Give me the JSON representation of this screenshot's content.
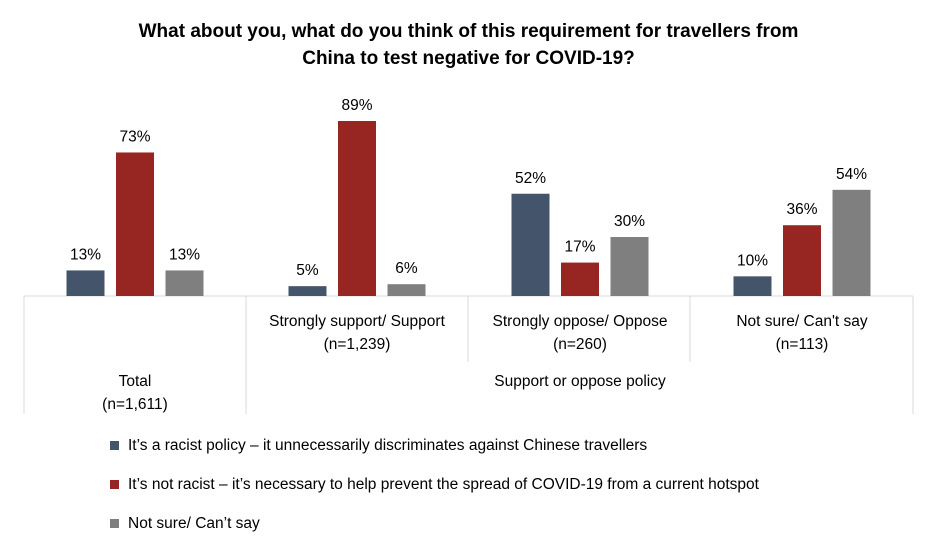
{
  "chart_data": {
    "type": "bar",
    "title_line1": "What about you, what do you think of this requirement for travellers from",
    "title_line2": "China to test negative for COVID-19?",
    "groups": [
      {
        "label_line1": "Total",
        "label_line2": "(n=1,611)"
      },
      {
        "label_line1": "Strongly support/ Support",
        "label_line2": "(n=1,239)"
      },
      {
        "label_line1": "Strongly oppose/ Oppose",
        "label_line2": "(n=260)"
      },
      {
        "label_line1": "Not sure/ Can't say",
        "label_line2": "(n=113)"
      }
    ],
    "supergroup_label": "Support or oppose policy",
    "series": [
      {
        "name": "It’s a racist policy – it unnecessarily discriminates against Chinese travellers",
        "color": "#44546a",
        "values": [
          13,
          5,
          52,
          10
        ],
        "labels": [
          "13%",
          "5%",
          "52%",
          "10%"
        ]
      },
      {
        "name": "It’s not racist – it’s necessary to help prevent the spread of COVID-19 from a current hotspot",
        "color": "#972622",
        "values": [
          73,
          89,
          17,
          36
        ],
        "labels": [
          "73%",
          "89%",
          "17%",
          "36%"
        ]
      },
      {
        "name": "Not sure/ Can’t say",
        "color": "#7f7f7f",
        "values": [
          13,
          6,
          30,
          54
        ],
        "labels": [
          "13%",
          "6%",
          "30%",
          "54%"
        ]
      }
    ],
    "ylim": [
      0,
      100
    ],
    "grid": false,
    "legend_position": "bottom"
  }
}
